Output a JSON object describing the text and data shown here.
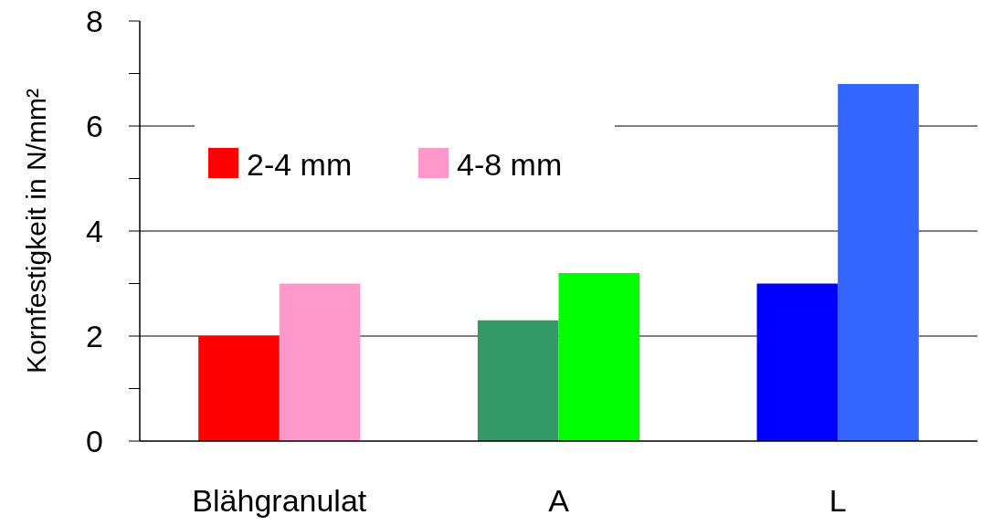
{
  "chart_data": {
    "type": "bar",
    "ylabel": "Kornfestigkeit in N/mm²",
    "categories": [
      "Blähgranulat",
      "A",
      "L"
    ],
    "series": [
      {
        "name": "2-4 mm",
        "color": "#ff0000",
        "colors": [
          "#ff0000",
          "#339966",
          "#0000ff"
        ],
        "values": [
          2.0,
          2.3,
          3.0
        ]
      },
      {
        "name": "4-8 mm",
        "color": "#ff99cc",
        "colors": [
          "#ff99cc",
          "#00ff00",
          "#3366ff"
        ],
        "values": [
          3.0,
          3.2,
          6.8
        ]
      }
    ],
    "ylim": [
      0,
      8
    ],
    "yticks": [
      0,
      {
        "value": 1,
        "label": null
      },
      2,
      {
        "value": 3,
        "label": null
      },
      4,
      {
        "value": 5,
        "label": null
      },
      6,
      {
        "value": 7,
        "label": null
      },
      8
    ],
    "grid": "y",
    "legend": "top left"
  }
}
